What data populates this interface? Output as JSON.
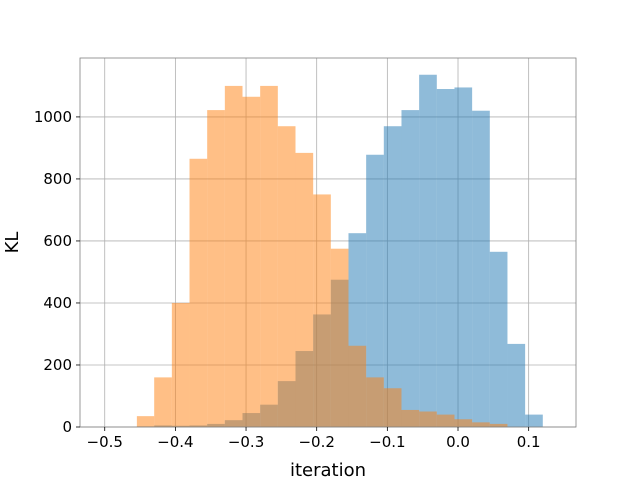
{
  "chart_data": {
    "type": "histogram",
    "title": "",
    "xlabel": "iteration",
    "ylabel": "KL",
    "xlim": [
      -0.535,
      0.167
    ],
    "ylim": [
      0,
      1190
    ],
    "grid": true,
    "xticks": [
      -0.5,
      -0.4,
      -0.3,
      -0.2,
      -0.1,
      0.0,
      0.1
    ],
    "xtick_labels": [
      "−0.5",
      "−0.4",
      "−0.3",
      "−0.2",
      "−0.1",
      "0.0",
      "0.1"
    ],
    "yticks": [
      0,
      200,
      400,
      600,
      800,
      1000
    ],
    "ytick_labels": [
      "0",
      "200",
      "400",
      "600",
      "800",
      "1000"
    ],
    "series": [
      {
        "color": "#1f77b4",
        "opacity": 0.5,
        "bin_edges": [
          -0.4545,
          -0.43,
          -0.405,
          -0.38,
          -0.355,
          -0.33,
          -0.305,
          -0.28,
          -0.255,
          -0.23,
          -0.205,
          -0.18,
          -0.155,
          -0.13,
          -0.105,
          -0.08,
          -0.055,
          -0.03,
          -0.005,
          0.02,
          0.045,
          0.07,
          0.095,
          0.12
        ],
        "counts": [
          2,
          5,
          4,
          5,
          10,
          22,
          45,
          72,
          148,
          245,
          363,
          475,
          625,
          878,
          970,
          1022,
          1136,
          1090,
          1095,
          1020,
          565,
          268,
          40
        ]
      },
      {
        "color": "#ff7f0e",
        "opacity": 0.5,
        "bin_edges": [
          -0.4545,
          -0.43,
          -0.405,
          -0.38,
          -0.355,
          -0.33,
          -0.305,
          -0.28,
          -0.255,
          -0.23,
          -0.205,
          -0.18,
          -0.155,
          -0.13,
          -0.105,
          -0.08,
          -0.055,
          -0.03,
          -0.005,
          0.02,
          0.045,
          0.07
        ],
        "counts": [
          35,
          160,
          400,
          865,
          1022,
          1100,
          1065,
          1100,
          970,
          884,
          750,
          575,
          262,
          160,
          125,
          55,
          50,
          40,
          25,
          15,
          10
        ]
      }
    ]
  }
}
